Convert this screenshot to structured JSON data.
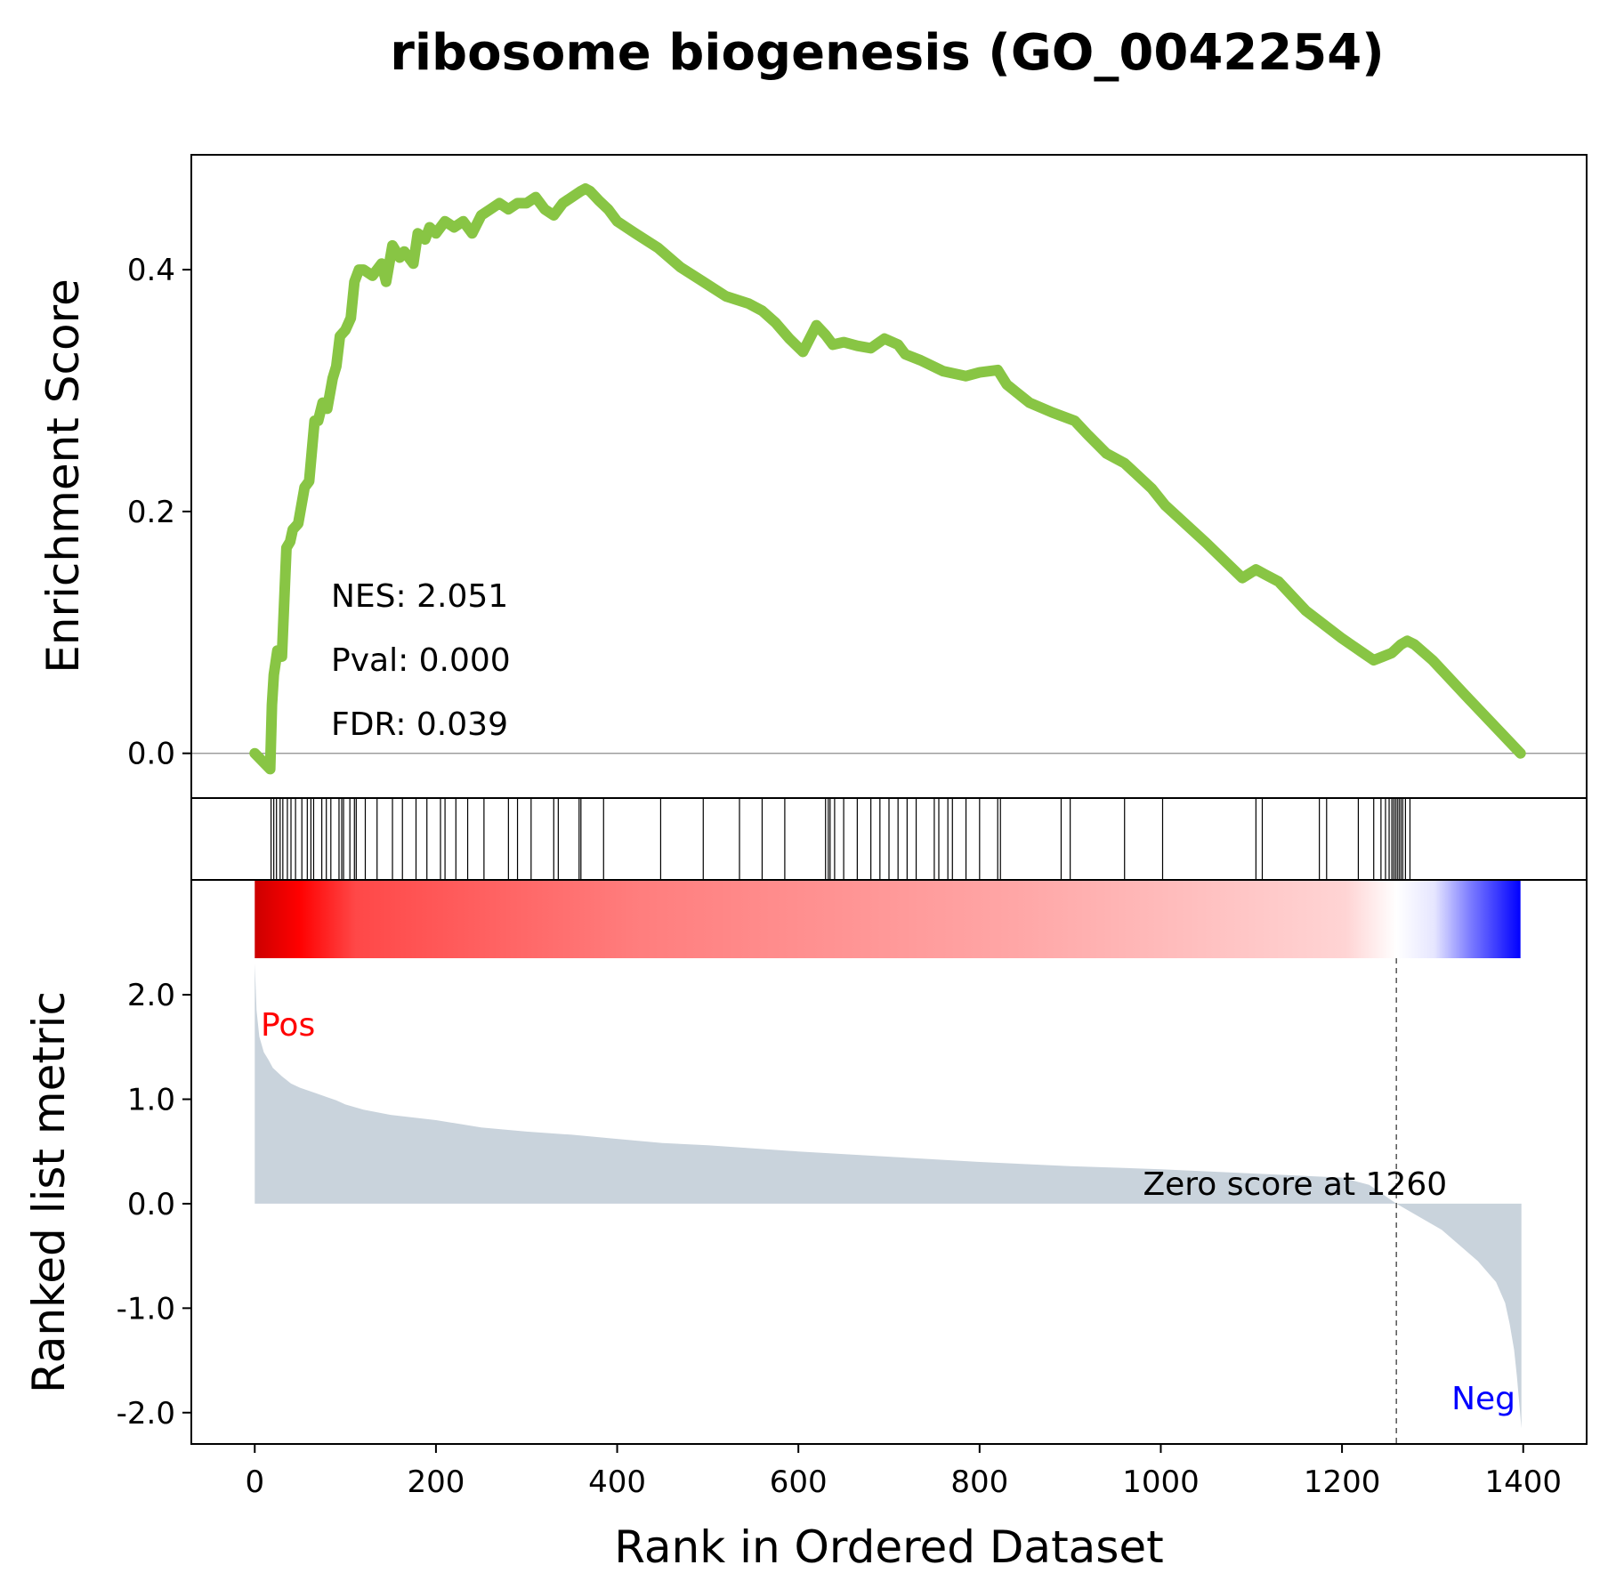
{
  "colors": {
    "es_line": "#88c544",
    "metric_fill": "#c9d3dc",
    "pos_label": "#ff0000",
    "neg_label": "#0000ff",
    "heat_red": "#ff0000",
    "heat_dark": "#cc0000",
    "heat_white": "#ffffff",
    "heat_blue": "#0000ff",
    "zero_line": "#8c8c8c"
  },
  "chart_data": {
    "type": "line",
    "title": "ribosome biogenesis (GO_0042254)",
    "xlabel": "Rank in Ordered Dataset",
    "xlim": [
      -70,
      1470
    ],
    "x_ticks": [
      "0",
      "200",
      "400",
      "600",
      "800",
      "1000",
      "1200",
      "1400"
    ],
    "x_tick_values": [
      0,
      200,
      400,
      600,
      800,
      1000,
      1200,
      1400
    ],
    "grid": false,
    "panels": {
      "enrichment": {
        "ylabel": "Enrichment Score",
        "ylim": [
          -0.037,
          0.495
        ],
        "y_ticks": [
          "0.0",
          "0.2",
          "0.4"
        ],
        "y_tick_values": [
          0.0,
          0.2,
          0.4
        ],
        "stats": [
          "NES: 2.051",
          "Pval: 0.000",
          "FDR: 0.039"
        ],
        "series": [
          {
            "x": [
              0,
              17,
              19,
              21,
              25,
              30,
              35,
              39,
              42,
              48,
              55,
              60,
              66,
              70,
              75,
              80,
              86,
              90,
              94,
              100,
              106,
              110,
              115,
              120,
              130,
              140,
              145,
              152,
              160,
              165,
              175,
              180,
              188,
              193,
              200,
              210,
              220,
              230,
              240,
              250,
              260,
              270,
              280,
              290,
              300,
              310,
              320,
              330,
              340,
              350,
              360,
              365,
              370,
              380,
              390,
              400,
              420,
              445,
              470,
              495,
              520,
              545,
              560,
              575,
              590,
              605,
              620,
              630,
              638,
              650,
              665,
              680,
              695,
              710,
              718,
              735,
              760,
              785,
              800,
              820,
              830,
              855,
              880,
              905,
              920,
              940,
              960,
              990,
              1005,
              1050,
              1090,
              1105,
              1115,
              1130,
              1160,
              1200,
              1235,
              1245,
              1255,
              1265,
              1272,
              1280,
              1300,
              1340,
              1397
            ],
            "values": [
              0.0,
              -0.013,
              0.04,
              0.065,
              0.085,
              0.08,
              0.17,
              0.175,
              0.185,
              0.19,
              0.22,
              0.225,
              0.275,
              0.275,
              0.29,
              0.285,
              0.31,
              0.32,
              0.345,
              0.35,
              0.36,
              0.39,
              0.4,
              0.4,
              0.395,
              0.405,
              0.39,
              0.42,
              0.41,
              0.415,
              0.405,
              0.43,
              0.425,
              0.435,
              0.43,
              0.44,
              0.435,
              0.44,
              0.43,
              0.445,
              0.45,
              0.455,
              0.45,
              0.455,
              0.455,
              0.46,
              0.45,
              0.445,
              0.455,
              0.46,
              0.465,
              0.467,
              0.465,
              0.457,
              0.45,
              0.44,
              0.43,
              0.418,
              0.402,
              0.39,
              0.378,
              0.372,
              0.366,
              0.356,
              0.343,
              0.332,
              0.354,
              0.346,
              0.338,
              0.34,
              0.337,
              0.335,
              0.343,
              0.338,
              0.33,
              0.325,
              0.316,
              0.312,
              0.315,
              0.317,
              0.305,
              0.29,
              0.282,
              0.275,
              0.263,
              0.248,
              0.24,
              0.219,
              0.205,
              0.174,
              0.145,
              0.152,
              0.148,
              0.142,
              0.118,
              0.095,
              0.077,
              0.08,
              0.083,
              0.09,
              0.093,
              0.09,
              0.077,
              0.045,
              0.0
            ]
          }
        ]
      },
      "hits": {
        "positions": [
          18,
          21,
          24,
          28,
          31,
          36,
          40,
          45,
          52,
          58,
          62,
          65,
          74,
          79,
          84,
          93,
          96,
          98,
          105,
          110,
          112,
          122,
          135,
          152,
          163,
          178,
          190,
          205,
          210,
          222,
          235,
          253,
          280,
          290,
          305,
          330,
          335,
          358,
          360,
          385,
          448,
          495,
          535,
          560,
          585,
          630,
          633,
          635,
          640,
          650,
          665,
          680,
          690,
          700,
          710,
          720,
          730,
          750,
          755,
          765,
          770,
          785,
          800,
          820,
          823,
          890,
          900,
          960,
          1002,
          1105,
          1112,
          1175,
          1183,
          1218,
          1235,
          1243,
          1248,
          1252,
          1255,
          1257,
          1259,
          1261,
          1263,
          1265,
          1267,
          1270,
          1275
        ]
      },
      "ranked_metric": {
        "ylabel": "Ranked list metric",
        "ylim": [
          -2.3,
          2.35
        ],
        "y_ticks": [
          "2.0",
          "1.0",
          "0.0",
          "-1.0",
          "-2.0"
        ],
        "y_tick_values": [
          2.0,
          1.0,
          0.0,
          -1.0,
          -2.0
        ],
        "pos_label": "Pos",
        "neg_label": "Neg",
        "zero_score_text": "Zero score at 1260",
        "zero_score_rank": 1260,
        "series": [
          {
            "x": [
              0,
              2,
              5,
              10,
              15,
              20,
              30,
              40,
              50,
              60,
              70,
              80,
              90,
              100,
              120,
              150,
              200,
              250,
              300,
              350,
              400,
              450,
              500,
              600,
              700,
              800,
              900,
              1000,
              1100,
              1200,
              1230,
              1260,
              1290,
              1310,
              1330,
              1350,
              1370,
              1380,
              1385,
              1390,
              1393,
              1396,
              1398
            ],
            "values": [
              2.3,
              1.85,
              1.6,
              1.45,
              1.38,
              1.3,
              1.22,
              1.15,
              1.11,
              1.08,
              1.05,
              1.02,
              0.99,
              0.95,
              0.9,
              0.85,
              0.8,
              0.73,
              0.69,
              0.66,
              0.62,
              0.58,
              0.56,
              0.5,
              0.45,
              0.4,
              0.36,
              0.33,
              0.29,
              0.25,
              0.18,
              0.0,
              -0.15,
              -0.25,
              -0.4,
              -0.55,
              -0.75,
              -0.95,
              -1.15,
              -1.4,
              -1.65,
              -1.95,
              -2.15
            ]
          }
        ]
      }
    }
  }
}
